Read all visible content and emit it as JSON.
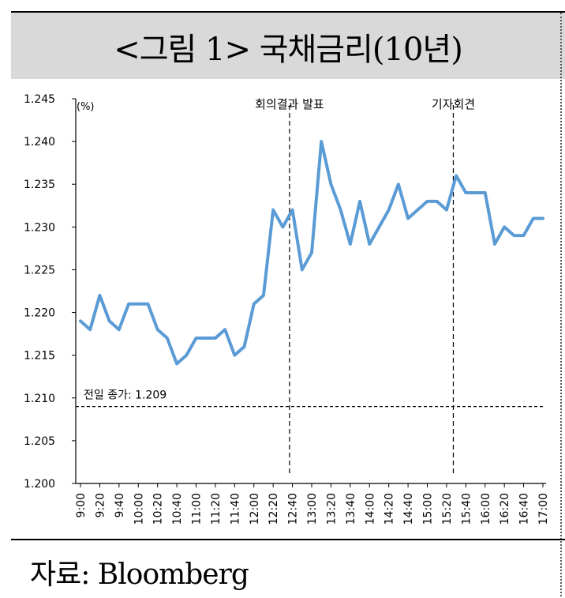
{
  "title": "<그림 1> 국채금리(10년)",
  "source": "자료: Bloomberg",
  "chart_data": {
    "type": "line",
    "ylabel": "(%)",
    "ylim": [
      1.2,
      1.245
    ],
    "y_ticks": [
      "1.200",
      "1.205",
      "1.210",
      "1.215",
      "1.220",
      "1.225",
      "1.230",
      "1.235",
      "1.240",
      "1.245"
    ],
    "x_tick_labels": [
      "9:00",
      "9:20",
      "9:40",
      "10:00",
      "10:20",
      "10:40",
      "11:00",
      "11:20",
      "11:40",
      "12:00",
      "12:20",
      "12:40",
      "13:00",
      "13:20",
      "13:40",
      "14:00",
      "14:20",
      "14:40",
      "15:00",
      "15:20",
      "15:40",
      "16:00",
      "16:20",
      "16:40",
      "17:00"
    ],
    "x_minutes": [
      0,
      10,
      20,
      30,
      40,
      50,
      60,
      70,
      80,
      90,
      100,
      110,
      120,
      130,
      140,
      150,
      160,
      170,
      180,
      190,
      200,
      210,
      220,
      230,
      240,
      250,
      260,
      270,
      280,
      290,
      300,
      310,
      320,
      330,
      340,
      350,
      360,
      370,
      380,
      390,
      400,
      410,
      420,
      430,
      440,
      450,
      460,
      470,
      480
    ],
    "values": [
      1.219,
      1.218,
      1.222,
      1.219,
      1.218,
      1.221,
      1.221,
      1.221,
      1.218,
      1.217,
      1.214,
      1.215,
      1.217,
      1.217,
      1.217,
      1.218,
      1.215,
      1.216,
      1.221,
      1.222,
      1.232,
      1.23,
      1.232,
      1.225,
      1.227,
      1.24,
      1.235,
      1.232,
      1.228,
      1.233,
      1.228,
      1.23,
      1.232,
      1.235,
      1.231,
      1.232,
      1.233,
      1.233,
      1.232,
      1.236,
      1.234,
      1.234,
      1.234,
      1.228,
      1.23,
      1.229,
      1.229,
      1.231,
      1.231
    ],
    "series_color": "#5b9bd5",
    "reference_line": {
      "value": 1.209,
      "label": "전일 종가: 1.209"
    },
    "annotations": [
      {
        "x_minutes": 217,
        "label": "회의결과 발표"
      },
      {
        "x_minutes": 387,
        "label": "기자회견"
      }
    ]
  }
}
